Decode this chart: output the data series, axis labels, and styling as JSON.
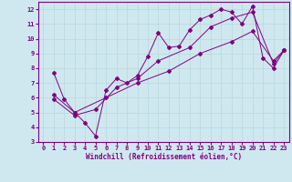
{
  "xlabel": "Windchill (Refroidissement éolien,°C)",
  "bg_color": "#cfe8f0",
  "line_color": "#800080",
  "grid_color": "#b8d8d8",
  "xlim": [
    -0.5,
    23.5
  ],
  "ylim": [
    3,
    12.5
  ],
  "xticks": [
    0,
    1,
    2,
    3,
    4,
    5,
    6,
    7,
    8,
    9,
    10,
    11,
    12,
    13,
    14,
    15,
    16,
    17,
    18,
    19,
    20,
    21,
    22,
    23
  ],
  "yticks": [
    3,
    4,
    5,
    6,
    7,
    8,
    9,
    10,
    11,
    12
  ],
  "line1_x": [
    1,
    2,
    3,
    4,
    5,
    6,
    7,
    8,
    9,
    10,
    11,
    12,
    13,
    14,
    15,
    16,
    17,
    18,
    19,
    20,
    21,
    22,
    23
  ],
  "line1_y": [
    7.7,
    5.9,
    5.0,
    4.3,
    3.4,
    6.5,
    7.3,
    7.0,
    7.5,
    8.8,
    10.4,
    9.4,
    9.5,
    10.6,
    11.3,
    11.6,
    12.0,
    11.8,
    11.0,
    12.2,
    8.7,
    8.0,
    9.2
  ],
  "line2_x": [
    1,
    3,
    5,
    7,
    9,
    11,
    14,
    16,
    18,
    20,
    22,
    23
  ],
  "line2_y": [
    5.9,
    4.8,
    5.2,
    6.7,
    7.3,
    8.5,
    9.4,
    10.8,
    11.4,
    11.8,
    8.3,
    9.2
  ],
  "line3_x": [
    1,
    3,
    6,
    9,
    12,
    15,
    18,
    20,
    22,
    23
  ],
  "line3_y": [
    6.2,
    5.0,
    6.0,
    7.0,
    7.8,
    9.0,
    9.8,
    10.5,
    8.5,
    9.2
  ]
}
